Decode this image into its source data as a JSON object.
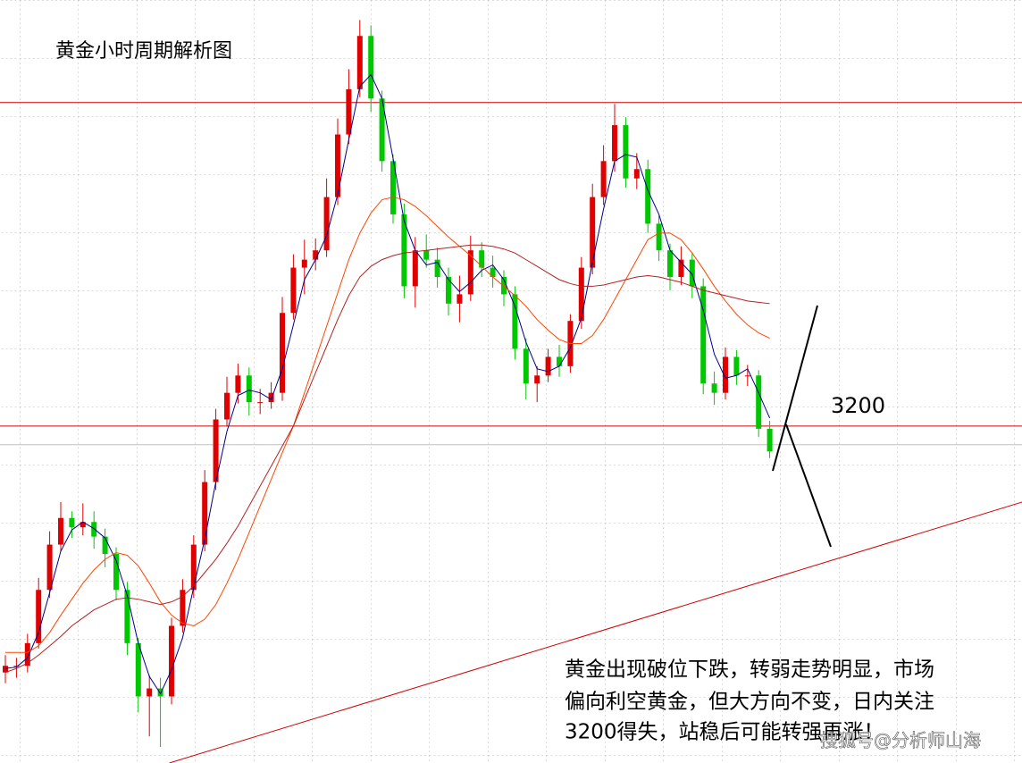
{
  "chart_data": {
    "type": "candlestick",
    "title": "黄金小时周期解析图",
    "annotation": [
      "黄金出现破位下跌，转弱走势明显，市场",
      "偏向利空黄金，但大方向不变，日内关注",
      "3200得失，站稳后可能转强再涨！"
    ],
    "watermark": "搜狐号@分析师山海",
    "ylim": [
      2947,
      3520
    ],
    "up_color": "#e00000",
    "down_color": "#00c800",
    "open": [
      3015,
      3020,
      3020,
      3037,
      3077,
      3111,
      3131,
      3124,
      3128,
      3117,
      3104,
      3077,
      3037,
      2997,
      3003,
      2997,
      3050,
      3077,
      3111,
      3158,
      3205,
      3225,
      3238,
      3218,
      3218,
      3225,
      3285,
      3319,
      3325,
      3332,
      3372,
      3419,
      3453,
      3493,
      3446,
      3399,
      3359,
      3305,
      3332,
      3325,
      3312,
      3292,
      3299,
      3332,
      3319,
      3312,
      3299,
      3258,
      3232,
      3238,
      3252,
      3245,
      3279,
      3319,
      3372,
      3399,
      3426,
      3386,
      3393,
      3352,
      3332,
      3312,
      3325,
      3305,
      3232,
      3225,
      3252,
      3238,
      3238,
      3198
    ],
    "high": [
      3028,
      3026,
      3044,
      3086,
      3121,
      3143,
      3136,
      3142,
      3136,
      3123,
      3109,
      3083,
      3041,
      3013,
      3011,
      3056,
      3085,
      3118,
      3167,
      3213,
      3237,
      3247,
      3244,
      3228,
      3233,
      3297,
      3329,
      3340,
      3341,
      3386,
      3431,
      3468,
      3505,
      3501,
      3452,
      3404,
      3367,
      3342,
      3344,
      3334,
      3319,
      3313,
      3343,
      3338,
      3328,
      3317,
      3305,
      3266,
      3245,
      3258,
      3261,
      3284,
      3327,
      3382,
      3411,
      3442,
      3432,
      3405,
      3400,
      3358,
      3337,
      3335,
      3330,
      3311,
      3241,
      3259,
      3257,
      3246,
      3242,
      3204
    ],
    "low": [
      3007,
      3011,
      3015,
      3033,
      3071,
      3106,
      3116,
      3118,
      3108,
      3094,
      3069,
      3028,
      2985,
      2967,
      2959,
      2991,
      3045,
      3071,
      3106,
      3152,
      3200,
      3217,
      3208,
      3209,
      3213,
      3219,
      3280,
      3299,
      3317,
      3327,
      3366,
      3412,
      3447,
      3436,
      3391,
      3352,
      3296,
      3289,
      3319,
      3304,
      3283,
      3278,
      3294,
      3312,
      3304,
      3290,
      3250,
      3220,
      3218,
      3233,
      3237,
      3240,
      3273,
      3314,
      3366,
      3391,
      3379,
      3378,
      3345,
      3324,
      3302,
      3306,
      3296,
      3224,
      3216,
      3220,
      3231,
      3230,
      3192,
      3176
    ],
    "close": [
      3020,
      3020,
      3037,
      3077,
      3111,
      3131,
      3124,
      3128,
      3117,
      3104,
      3077,
      3037,
      2997,
      3003,
      2997,
      3050,
      3077,
      3111,
      3158,
      3205,
      3225,
      3238,
      3218,
      3218,
      3225,
      3285,
      3319,
      3325,
      3332,
      3372,
      3419,
      3453,
      3493,
      3446,
      3399,
      3359,
      3305,
      3332,
      3325,
      3312,
      3292,
      3299,
      3332,
      3319,
      3312,
      3299,
      3258,
      3232,
      3238,
      3252,
      3245,
      3279,
      3319,
      3372,
      3399,
      3426,
      3386,
      3393,
      3352,
      3332,
      3312,
      3325,
      3305,
      3232,
      3225,
      3252,
      3238,
      3238,
      3198,
      3181
    ],
    "series": [
      {
        "color": "#00008b",
        "values": [
          3018,
          3019,
          3026,
          3045,
          3075,
          3106,
          3122,
          3128,
          3123,
          3116,
          3099,
          3073,
          3037,
          3012,
          2999,
          3017,
          3041,
          3079,
          3115,
          3158,
          3196,
          3223,
          3227,
          3225,
          3220,
          3243,
          3276,
          3310,
          3325,
          3343,
          3374,
          3415,
          3455,
          3464,
          3446,
          3401,
          3354,
          3332,
          3321,
          3323,
          3310,
          3301,
          3308,
          3317,
          3321,
          3310,
          3290,
          3263,
          3243,
          3241,
          3245,
          3259,
          3281,
          3323,
          3363,
          3399,
          3404,
          3402,
          3377,
          3359,
          3332,
          3323,
          3314,
          3287,
          3254,
          3236,
          3238,
          3243,
          3225,
          3206
        ]
      },
      {
        "color": "#ff4500",
        "values": [
          3030,
          3030,
          3030,
          3035,
          3045,
          3058,
          3070,
          3082,
          3092,
          3100,
          3105,
          3103,
          3095,
          3082,
          3068,
          3058,
          3052,
          3050,
          3055,
          3066,
          3082,
          3100,
          3120,
          3140,
          3160,
          3180,
          3200,
          3225,
          3250,
          3275,
          3300,
          3325,
          3345,
          3360,
          3370,
          3372,
          3370,
          3365,
          3358,
          3350,
          3342,
          3335,
          3328,
          3320,
          3312,
          3305,
          3298,
          3290,
          3280,
          3272,
          3265,
          3262,
          3262,
          3268,
          3280,
          3295,
          3310,
          3325,
          3340,
          3345,
          3345,
          3340,
          3330,
          3318,
          3305,
          3294,
          3284,
          3276,
          3270,
          3266
        ]
      },
      {
        "color": "#b22222",
        "values": [
          3015,
          3018,
          3022,
          3028,
          3035,
          3042,
          3050,
          3056,
          3062,
          3066,
          3070,
          3071,
          3070,
          3068,
          3066,
          3068,
          3072,
          3080,
          3090,
          3100,
          3112,
          3125,
          3140,
          3155,
          3170,
          3185,
          3200,
          3220,
          3240,
          3260,
          3280,
          3298,
          3312,
          3320,
          3325,
          3328,
          3330,
          3331,
          3332,
          3333,
          3334,
          3335,
          3336,
          3336,
          3335,
          3333,
          3330,
          3325,
          3320,
          3315,
          3310,
          3307,
          3305,
          3305,
          3306,
          3308,
          3310,
          3312,
          3313,
          3312,
          3310,
          3308,
          3305,
          3302,
          3300,
          3298,
          3296,
          3294,
          3293,
          3292
        ]
      }
    ],
    "hlines": [
      3443,
      3200
    ],
    "hline_color": "#d00000",
    "price_line": 3186,
    "trendline": {
      "x": [
        14.8,
        91.8
      ],
      "y": [
        2947,
        3143
      ],
      "color": "#d00000"
    }
  }
}
